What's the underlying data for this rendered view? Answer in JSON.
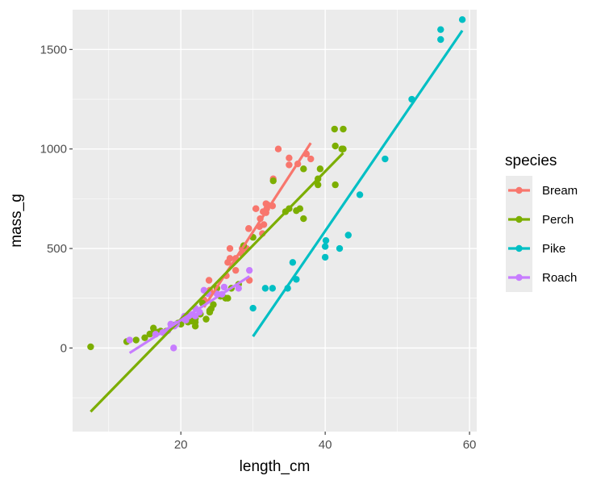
{
  "chart_data": {
    "type": "scatter",
    "title": "",
    "xlabel": "length_cm",
    "ylabel": "mass_g",
    "xlim": [
      5,
      61
    ],
    "ylim": [
      -420,
      1700
    ],
    "x_ticks": [
      20,
      40,
      60
    ],
    "x_minor_ticks": [
      10,
      30,
      50
    ],
    "y_ticks": [
      0,
      500,
      1000,
      1500
    ],
    "y_minor_ticks": [
      -250,
      250,
      750,
      1250
    ],
    "x_tick_labels": [
      "20",
      "40",
      "60"
    ],
    "y_tick_labels": [
      "0",
      "500",
      "1000",
      "1500"
    ],
    "grid": true,
    "legend": {
      "title": "species",
      "position": "right"
    },
    "series": [
      {
        "name": "Bream",
        "color": "#F8766D",
        "points": [
          [
            23.2,
            242
          ],
          [
            24,
            290
          ],
          [
            23.9,
            340
          ],
          [
            26.3,
            363
          ],
          [
            26.5,
            430
          ],
          [
            26.8,
            450
          ],
          [
            26.8,
            500
          ],
          [
            27.6,
            390
          ],
          [
            27.6,
            450
          ],
          [
            28.5,
            500
          ],
          [
            28.4,
            475
          ],
          [
            28.7,
            500
          ],
          [
            29.1,
            500
          ],
          [
            29.5,
            340
          ],
          [
            29.4,
            600
          ],
          [
            29.4,
            600
          ],
          [
            30.4,
            700
          ],
          [
            30.4,
            700
          ],
          [
            30.9,
            610
          ],
          [
            31,
            650
          ],
          [
            31.3,
            575
          ],
          [
            31.4,
            685
          ],
          [
            31.5,
            620
          ],
          [
            31.8,
            680
          ],
          [
            31.9,
            700
          ],
          [
            31.8,
            725
          ],
          [
            32,
            720
          ],
          [
            32.7,
            714
          ],
          [
            32.8,
            850
          ],
          [
            33.5,
            1000
          ],
          [
            35,
            920
          ],
          [
            35,
            955
          ],
          [
            36.2,
            925
          ],
          [
            37.4,
            975
          ],
          [
            38,
            950
          ]
        ],
        "fit": [
          [
            23.2,
            205
          ],
          [
            38,
            1030
          ]
        ]
      },
      {
        "name": "Perch",
        "color": "#7CAE00",
        "points": [
          [
            7.5,
            5.9
          ],
          [
            12.5,
            32
          ],
          [
            13.8,
            40
          ],
          [
            15,
            51.5
          ],
          [
            15.7,
            70
          ],
          [
            16.2,
            100
          ],
          [
            16.2,
            78
          ],
          [
            16.9,
            80
          ],
          [
            17.2,
            85
          ],
          [
            18,
            85
          ],
          [
            18.7,
            110
          ],
          [
            19,
            115
          ],
          [
            19.6,
            125
          ],
          [
            20,
            130
          ],
          [
            20,
            120
          ],
          [
            20,
            120
          ],
          [
            21,
            130
          ],
          [
            21.5,
            135
          ],
          [
            22,
            110
          ],
          [
            22,
            130
          ],
          [
            22,
            150
          ],
          [
            22,
            145
          ],
          [
            22,
            150
          ],
          [
            22.7,
            170
          ],
          [
            23,
            225
          ],
          [
            23.5,
            145
          ],
          [
            24,
            188
          ],
          [
            24,
            180
          ],
          [
            24.2,
            197
          ],
          [
            24.5,
            218
          ],
          [
            25,
            300
          ],
          [
            25.5,
            260
          ],
          [
            25.5,
            265
          ],
          [
            26.2,
            250
          ],
          [
            26.5,
            250
          ],
          [
            27,
            300
          ],
          [
            28,
            320
          ],
          [
            28.7,
            514
          ],
          [
            30,
            556
          ],
          [
            32.8,
            840
          ],
          [
            34.5,
            685
          ],
          [
            35,
            700
          ],
          [
            36.5,
            700
          ],
          [
            36,
            690
          ],
          [
            37,
            900
          ],
          [
            37,
            650
          ],
          [
            39,
            820
          ],
          [
            39,
            850
          ],
          [
            39.3,
            900
          ],
          [
            41.4,
            1015
          ],
          [
            41.4,
            820
          ],
          [
            41.3,
            1100
          ],
          [
            42.3,
            1000
          ],
          [
            42.5,
            1100
          ],
          [
            42.4,
            1000
          ],
          [
            42.5,
            1000
          ]
        ],
        "fit": [
          [
            7.5,
            -320
          ],
          [
            42.5,
            980
          ]
        ]
      },
      {
        "name": "Pike",
        "color": "#00BFC4",
        "points": [
          [
            30,
            200
          ],
          [
            31.7,
            300
          ],
          [
            32.7,
            300
          ],
          [
            34.8,
            300
          ],
          [
            35.5,
            430
          ],
          [
            36,
            345
          ],
          [
            40,
            456
          ],
          [
            40,
            510
          ],
          [
            40.1,
            540
          ],
          [
            42,
            500
          ],
          [
            43.2,
            567
          ],
          [
            44.8,
            770
          ],
          [
            48.3,
            950
          ],
          [
            52,
            1250
          ],
          [
            56,
            1600
          ],
          [
            56,
            1550
          ],
          [
            59,
            1650
          ]
        ],
        "fit": [
          [
            30,
            58
          ],
          [
            59,
            1595
          ]
        ]
      },
      {
        "name": "Roach",
        "color": "#C77CFF",
        "points": [
          [
            12.9,
            40
          ],
          [
            16.5,
            69
          ],
          [
            17.5,
            78
          ],
          [
            18.2,
            87
          ],
          [
            18.6,
            120
          ],
          [
            19,
            0
          ],
          [
            19.1,
            110
          ],
          [
            19.4,
            120
          ],
          [
            20.4,
            150
          ],
          [
            20.5,
            145
          ],
          [
            20.5,
            160
          ],
          [
            20.7,
            140
          ],
          [
            21.1,
            160
          ],
          [
            21.6,
            169
          ],
          [
            22,
            161
          ],
          [
            22,
            200
          ],
          [
            22.6,
            180
          ],
          [
            23.2,
            290
          ],
          [
            23.8,
            272
          ],
          [
            25,
            272
          ],
          [
            25.7,
            270
          ],
          [
            26,
            306
          ],
          [
            28,
            300
          ],
          [
            29.5,
            390
          ]
        ],
        "fit": [
          [
            12.9,
            -25
          ],
          [
            29.5,
            360
          ]
        ]
      }
    ]
  }
}
